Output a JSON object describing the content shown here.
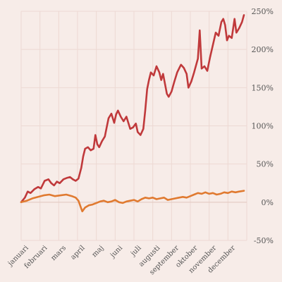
{
  "chart_data": {
    "type": "line",
    "title": "",
    "xlabel": "",
    "ylabel": "",
    "x_tick_labels": [
      "januari",
      "februari",
      "mars",
      "april",
      "maj",
      "juni",
      "juli",
      "augusti",
      "september",
      "oktober",
      "november",
      "december"
    ],
    "y_tick_labels": [
      "250%",
      "200%",
      "150%",
      "100%",
      "50%",
      "0%",
      "-50%"
    ],
    "y_ticks": [
      250,
      200,
      150,
      100,
      50,
      0,
      -50
    ],
    "ylim": [
      -50,
      250
    ],
    "xlim": [
      0,
      12
    ],
    "grid": true,
    "legend": "none",
    "series": [
      {
        "color": "#c0393b",
        "points": [
          [
            0,
            0
          ],
          [
            0.2,
            6
          ],
          [
            0.35,
            14
          ],
          [
            0.5,
            12
          ],
          [
            0.7,
            17
          ],
          [
            0.9,
            20
          ],
          [
            1.05,
            18
          ],
          [
            1.25,
            28
          ],
          [
            1.45,
            30
          ],
          [
            1.6,
            25
          ],
          [
            1.75,
            22
          ],
          [
            1.9,
            27
          ],
          [
            2.05,
            25
          ],
          [
            2.25,
            30
          ],
          [
            2.45,
            32
          ],
          [
            2.6,
            33
          ],
          [
            2.75,
            30
          ],
          [
            2.9,
            28
          ],
          [
            3.05,
            31
          ],
          [
            3.2,
            45
          ],
          [
            3.3,
            60
          ],
          [
            3.4,
            70
          ],
          [
            3.55,
            72
          ],
          [
            3.7,
            68
          ],
          [
            3.85,
            70
          ],
          [
            3.95,
            88
          ],
          [
            4.05,
            76
          ],
          [
            4.15,
            72
          ],
          [
            4.3,
            80
          ],
          [
            4.45,
            86
          ],
          [
            4.55,
            98
          ],
          [
            4.65,
            110
          ],
          [
            4.8,
            116
          ],
          [
            4.95,
            104
          ],
          [
            5.05,
            115
          ],
          [
            5.15,
            120
          ],
          [
            5.3,
            112
          ],
          [
            5.45,
            106
          ],
          [
            5.6,
            112
          ],
          [
            5.8,
            96
          ],
          [
            5.95,
            98
          ],
          [
            6.1,
            103
          ],
          [
            6.2,
            92
          ],
          [
            6.35,
            88
          ],
          [
            6.5,
            96
          ],
          [
            6.6,
            120
          ],
          [
            6.7,
            148
          ],
          [
            6.8,
            160
          ],
          [
            6.9,
            170
          ],
          [
            7.05,
            166
          ],
          [
            7.2,
            178
          ],
          [
            7.35,
            170
          ],
          [
            7.45,
            160
          ],
          [
            7.55,
            168
          ],
          [
            7.75,
            142
          ],
          [
            7.85,
            138
          ],
          [
            8.0,
            145
          ],
          [
            8.15,
            158
          ],
          [
            8.3,
            170
          ],
          [
            8.5,
            180
          ],
          [
            8.65,
            176
          ],
          [
            8.8,
            168
          ],
          [
            8.9,
            150
          ],
          [
            9.05,
            158
          ],
          [
            9.2,
            170
          ],
          [
            9.4,
            188
          ],
          [
            9.5,
            225
          ],
          [
            9.6,
            175
          ],
          [
            9.75,
            178
          ],
          [
            9.9,
            172
          ],
          [
            10.05,
            190
          ],
          [
            10.2,
            206
          ],
          [
            10.35,
            222
          ],
          [
            10.5,
            218
          ],
          [
            10.65,
            236
          ],
          [
            10.75,
            240
          ],
          [
            10.85,
            232
          ],
          [
            10.95,
            212
          ],
          [
            11.05,
            218
          ],
          [
            11.2,
            215
          ],
          [
            11.35,
            240
          ],
          [
            11.45,
            222
          ],
          [
            11.6,
            228
          ],
          [
            11.75,
            236
          ],
          [
            11.85,
            245
          ]
        ]
      },
      {
        "color": "#e07a30",
        "points": [
          [
            0,
            0
          ],
          [
            0.3,
            2
          ],
          [
            0.6,
            5
          ],
          [
            0.9,
            7
          ],
          [
            1.2,
            9
          ],
          [
            1.5,
            10
          ],
          [
            1.8,
            8
          ],
          [
            2.1,
            9
          ],
          [
            2.4,
            10
          ],
          [
            2.7,
            8
          ],
          [
            2.9,
            6
          ],
          [
            3.05,
            2
          ],
          [
            3.15,
            -5
          ],
          [
            3.25,
            -12
          ],
          [
            3.4,
            -7
          ],
          [
            3.6,
            -4
          ],
          [
            3.8,
            -3
          ],
          [
            4.0,
            -1
          ],
          [
            4.2,
            1
          ],
          [
            4.4,
            2
          ],
          [
            4.6,
            0
          ],
          [
            4.8,
            1
          ],
          [
            5.0,
            3
          ],
          [
            5.2,
            0
          ],
          [
            5.4,
            -1
          ],
          [
            5.6,
            1
          ],
          [
            5.8,
            2
          ],
          [
            6.0,
            3
          ],
          [
            6.2,
            1
          ],
          [
            6.4,
            4
          ],
          [
            6.6,
            6
          ],
          [
            6.8,
            5
          ],
          [
            7.0,
            6
          ],
          [
            7.2,
            4
          ],
          [
            7.4,
            5
          ],
          [
            7.6,
            6
          ],
          [
            7.8,
            3
          ],
          [
            8.0,
            4
          ],
          [
            8.2,
            5
          ],
          [
            8.4,
            6
          ],
          [
            8.6,
            7
          ],
          [
            8.8,
            6
          ],
          [
            9.0,
            8
          ],
          [
            9.2,
            10
          ],
          [
            9.4,
            12
          ],
          [
            9.6,
            11
          ],
          [
            9.8,
            13
          ],
          [
            10.0,
            11
          ],
          [
            10.2,
            12
          ],
          [
            10.4,
            10
          ],
          [
            10.6,
            11
          ],
          [
            10.8,
            13
          ],
          [
            11.0,
            12
          ],
          [
            11.2,
            14
          ],
          [
            11.4,
            13
          ],
          [
            11.6,
            14
          ],
          [
            11.85,
            15
          ]
        ]
      }
    ]
  }
}
